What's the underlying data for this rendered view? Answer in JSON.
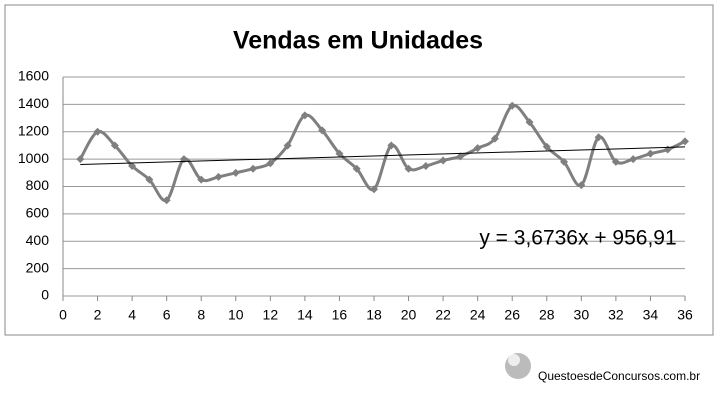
{
  "chart_data": {
    "type": "line",
    "title": "Vendas em Unidades",
    "x": [
      1,
      2,
      3,
      4,
      5,
      6,
      7,
      8,
      9,
      10,
      11,
      12,
      13,
      14,
      15,
      16,
      17,
      18,
      19,
      20,
      21,
      22,
      23,
      24,
      25,
      26,
      27,
      28,
      29,
      30,
      31,
      32,
      33,
      34,
      35,
      36
    ],
    "series": [
      {
        "color": "#7f7f7f",
        "values": [
          1000,
          1200,
          1100,
          950,
          850,
          700,
          1000,
          850,
          870,
          900,
          930,
          970,
          1100,
          1320,
          1210,
          1040,
          930,
          780,
          1100,
          930,
          950,
          990,
          1020,
          1080,
          1150,
          1390,
          1270,
          1090,
          980,
          810,
          1160,
          980,
          1000,
          1040,
          1070,
          1130
        ]
      }
    ],
    "trendline": {
      "slope": 3.6736,
      "intercept": 956.91,
      "label": "y = 3,6736x + 956,91",
      "color": "#000000"
    },
    "xlim": [
      0,
      36
    ],
    "xticks": [
      0,
      2,
      4,
      6,
      8,
      10,
      12,
      14,
      16,
      18,
      20,
      22,
      24,
      26,
      28,
      30,
      32,
      34,
      36
    ],
    "ylim": [
      0,
      1600
    ],
    "yticks": [
      0,
      200,
      400,
      600,
      800,
      1000,
      1200,
      1400,
      1600
    ],
    "grid": true
  },
  "watermark": "QuestoesdeConcursos.com.br"
}
